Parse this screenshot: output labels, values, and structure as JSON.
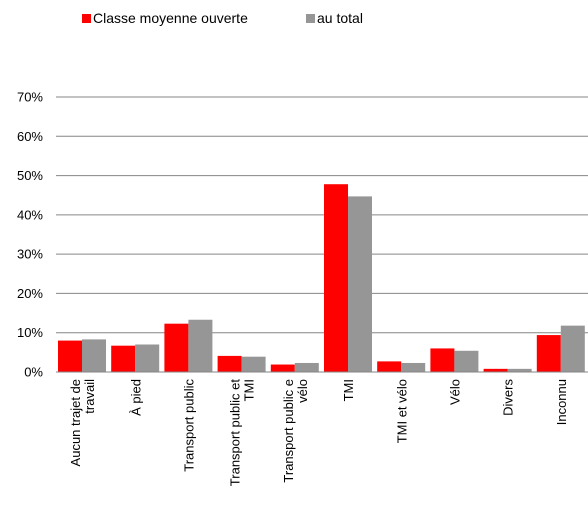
{
  "chart_data": {
    "type": "bar",
    "title": "",
    "xlabel": "",
    "ylabel": "",
    "ylim": [
      0,
      70
    ],
    "y_ticks": [
      0,
      10,
      20,
      30,
      40,
      50,
      60,
      70
    ],
    "y_tick_format": "percent",
    "grid": true,
    "legend_position": "top-left",
    "categories": [
      [
        "Aucun trajet de",
        "travail"
      ],
      [
        "À pied"
      ],
      [
        "Transport public"
      ],
      [
        "Transport public et",
        "TMI"
      ],
      [
        "Transport public e",
        "vélo"
      ],
      [
        "TMI"
      ],
      [
        "TMI et vélo"
      ],
      [
        "Vélo"
      ],
      [
        "Divers"
      ],
      [
        "Inconnu"
      ]
    ],
    "series": [
      {
        "name": "Classe moyenne ouverte",
        "color": "#ff0000",
        "values": [
          8.0,
          6.7,
          12.3,
          4.1,
          1.9,
          47.8,
          2.7,
          6.0,
          0.8,
          9.4
        ]
      },
      {
        "name": "au total",
        "color": "#969696",
        "values": [
          8.3,
          7.0,
          13.3,
          3.9,
          2.3,
          44.7,
          2.3,
          5.4,
          0.8,
          11.8
        ]
      }
    ]
  }
}
